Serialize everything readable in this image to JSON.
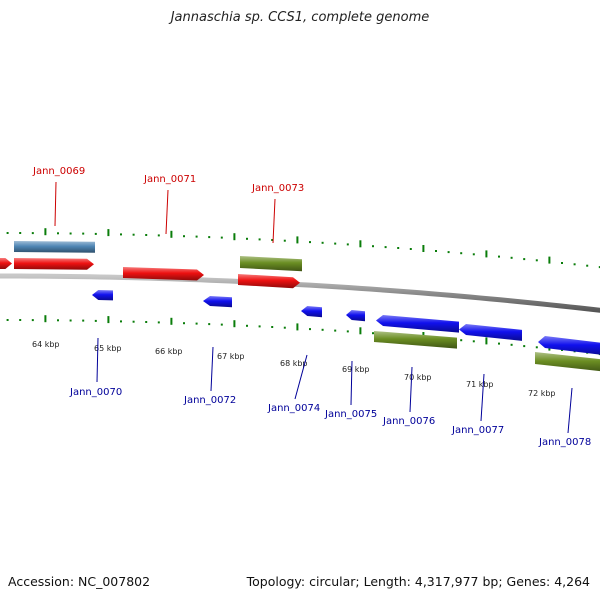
{
  "title": "Jannaschia sp. CCS1, complete genome",
  "footer": {
    "accession": "Accession: NC_007802",
    "topology": "Topology: circular; Length: 4,317,977 bp; Genes: 4,264"
  },
  "colors": {
    "forward_cds": "#ee1111",
    "reverse_cds": "#1111ee",
    "rna": "#4f86b4",
    "other_feature": "#6b8e23",
    "tick": "#0a7d0a",
    "backbone": "#8a8a8a",
    "label_top": "#cc0000",
    "label_bottom": "#000099"
  },
  "kbp_labels": [
    "64 kbp",
    "65 kbp",
    "66 kbp",
    "67 kbp",
    "68 kbp",
    "69 kbp",
    "70 kbp",
    "71 kbp",
    "72 kbp"
  ],
  "genes_top": [
    "Jann_0069",
    "Jann_0071",
    "Jann_0073"
  ],
  "genes_bottom": [
    "Jann_0070",
    "Jann_0072",
    "Jann_0074",
    "Jann_0075",
    "Jann_0076",
    "Jann_0077",
    "Jann_0078"
  ]
}
